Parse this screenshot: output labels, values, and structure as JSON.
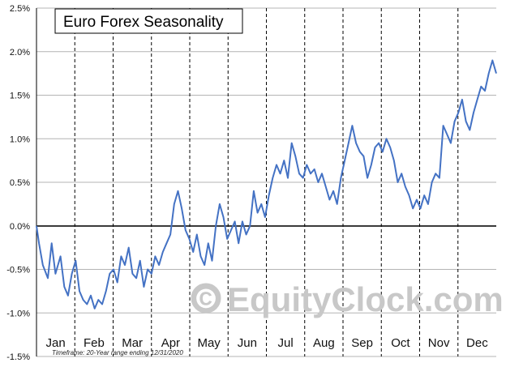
{
  "chart_data": {
    "type": "line",
    "title": "Euro Forex Seasonality",
    "footnote": "Timeframe: 20-Year range ending 12/31/2020",
    "watermark": "EquityClock.com",
    "watermark_symbol": "©",
    "xlabel": "",
    "ylabel": "",
    "months": [
      "Jan",
      "Feb",
      "Mar",
      "Apr",
      "May",
      "Jun",
      "Jul",
      "Aug",
      "Sep",
      "Oct",
      "Nov",
      "Dec"
    ],
    "y_ticks": [
      "2.5%",
      "2.0%",
      "1.5%",
      "1.0%",
      "0.5%",
      "0.0%",
      "-0.5%",
      "-1.0%",
      "-1.5%"
    ],
    "ylim": [
      -1.5,
      2.5
    ],
    "xlim": [
      1,
      365
    ],
    "grid": "horizontal solid, vertical dashed at month boundaries",
    "line_color": "#4472C4",
    "series": [
      {
        "x": [
          1,
          3,
          6,
          10,
          13,
          16,
          20,
          23,
          26,
          29,
          32,
          35,
          38,
          41,
          44,
          47,
          50,
          53,
          56,
          59,
          62,
          65,
          68,
          71,
          74,
          77,
          80,
          83,
          86,
          89,
          92,
          95,
          98,
          101,
          104,
          107,
          110,
          113,
          116,
          119,
          122,
          125,
          128,
          131,
          134,
          137,
          140,
          143,
          146,
          149,
          152,
          155,
          158,
          161,
          164,
          167,
          170,
          173,
          176,
          179,
          182,
          185,
          188,
          191,
          194,
          197,
          200,
          203,
          206,
          209,
          212,
          215,
          218,
          221,
          224,
          227,
          230,
          233,
          236,
          239,
          242,
          245,
          248,
          251,
          254,
          257,
          260,
          263,
          266,
          269,
          272,
          275,
          278,
          281,
          284,
          287,
          290,
          293,
          296,
          299,
          302,
          305,
          308,
          311,
          314,
          317,
          320,
          323,
          326,
          329,
          332,
          335,
          338,
          341,
          344,
          347,
          350,
          353,
          356,
          359,
          362,
          365
        ],
        "y": [
          0.0,
          -0.2,
          -0.45,
          -0.6,
          -0.2,
          -0.55,
          -0.35,
          -0.7,
          -0.8,
          -0.55,
          -0.4,
          -0.75,
          -0.85,
          -0.9,
          -0.8,
          -0.95,
          -0.85,
          -0.9,
          -0.75,
          -0.55,
          -0.5,
          -0.65,
          -0.35,
          -0.45,
          -0.25,
          -0.55,
          -0.6,
          -0.4,
          -0.7,
          -0.5,
          -0.55,
          -0.35,
          -0.45,
          -0.3,
          -0.2,
          -0.1,
          0.25,
          0.4,
          0.2,
          -0.05,
          -0.15,
          -0.3,
          -0.1,
          -0.35,
          -0.45,
          -0.2,
          -0.4,
          0.0,
          0.25,
          0.1,
          -0.15,
          -0.05,
          0.05,
          -0.2,
          0.05,
          -0.1,
          0.0,
          0.4,
          0.15,
          0.25,
          0.1,
          0.35,
          0.55,
          0.7,
          0.6,
          0.75,
          0.55,
          0.95,
          0.8,
          0.6,
          0.55,
          0.7,
          0.6,
          0.65,
          0.5,
          0.6,
          0.45,
          0.3,
          0.4,
          0.25,
          0.55,
          0.75,
          0.95,
          1.15,
          0.95,
          0.85,
          0.8,
          0.55,
          0.7,
          0.9,
          0.95,
          0.85,
          1.0,
          0.9,
          0.75,
          0.5,
          0.6,
          0.45,
          0.35,
          0.2,
          0.3,
          0.2,
          0.35,
          0.25,
          0.5,
          0.6,
          0.55,
          1.15,
          1.05,
          0.95,
          1.2,
          1.3,
          1.45,
          1.2,
          1.1,
          1.3,
          1.45,
          1.6,
          1.55,
          1.75,
          1.9,
          1.75
        ]
      }
    ]
  }
}
